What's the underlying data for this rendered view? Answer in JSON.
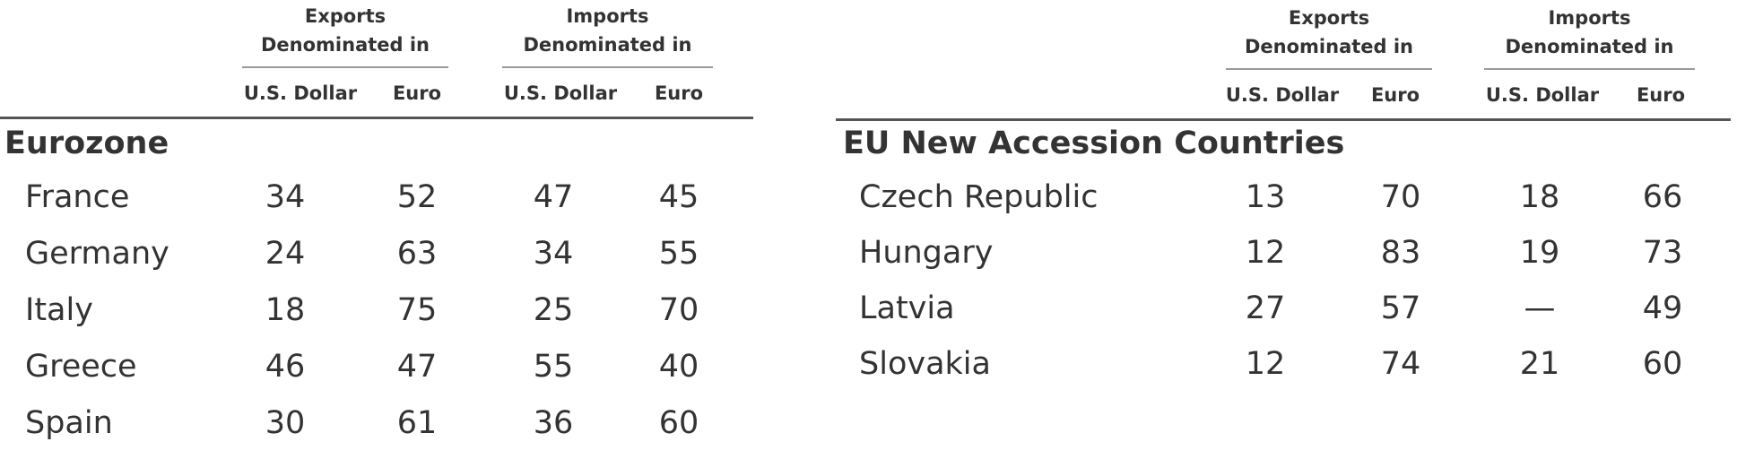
{
  "headers": {
    "exports_line1": "Exports",
    "exports_line2": "Denominated in",
    "imports_line1": "Imports",
    "imports_line2": "Denominated in",
    "usd": "U.S. Dollar",
    "euro": "Euro"
  },
  "left": {
    "section": "Eurozone",
    "rows": [
      {
        "country": "France",
        "exp_usd": "34",
        "exp_euro": "52",
        "imp_usd": "47",
        "imp_euro": "45"
      },
      {
        "country": "Germany",
        "exp_usd": "24",
        "exp_euro": "63",
        "imp_usd": "34",
        "imp_euro": "55"
      },
      {
        "country": "Italy",
        "exp_usd": "18",
        "exp_euro": "75",
        "imp_usd": "25",
        "imp_euro": "70"
      },
      {
        "country": "Greece",
        "exp_usd": "46",
        "exp_euro": "47",
        "imp_usd": "55",
        "imp_euro": "40"
      },
      {
        "country": "Spain",
        "exp_usd": "30",
        "exp_euro": "61",
        "imp_usd": "36",
        "imp_euro": "60"
      }
    ]
  },
  "right": {
    "section": "EU New Accession Countries",
    "rows": [
      {
        "country": "Czech Republic",
        "exp_usd": "13",
        "exp_euro": "70",
        "imp_usd": "18",
        "imp_euro": "66"
      },
      {
        "country": "Hungary",
        "exp_usd": "12",
        "exp_euro": "83",
        "imp_usd": "19",
        "imp_euro": "73"
      },
      {
        "country": "Latvia",
        "exp_usd": "27",
        "exp_euro": "57",
        "imp_usd": "—",
        "imp_euro": "49"
      },
      {
        "country": "Slovakia",
        "exp_usd": "12",
        "exp_euro": "74",
        "imp_usd": "21",
        "imp_euro": "60"
      }
    ]
  }
}
